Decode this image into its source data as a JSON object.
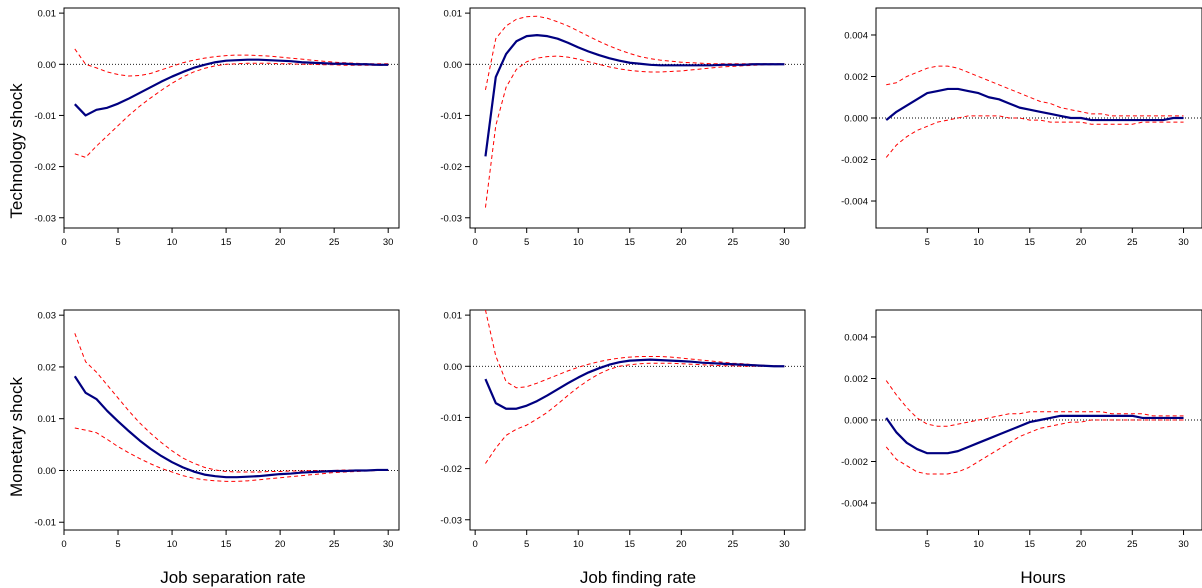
{
  "row_labels": [
    "Technology shock",
    "Monetary shock"
  ],
  "col_labels": [
    "Job separation rate",
    "Job finding rate",
    "Hours"
  ],
  "colors": {
    "point": "#000080",
    "band": "#ff0000",
    "zero_line": "#000000",
    "frame": "#000000"
  },
  "chart_data": [
    {
      "type": "line",
      "row": "Technology shock",
      "column": "Job separation rate",
      "xlim": [
        0,
        31
      ],
      "ylim": [
        -0.032,
        0.011
      ],
      "xticks": [
        0,
        5,
        10,
        15,
        20,
        25,
        30
      ],
      "yticks": [
        0.01,
        0.0,
        -0.01,
        -0.02,
        -0.03
      ],
      "ytick_labels": [
        "0.01",
        "0.00",
        "-0.01",
        "-0.02",
        "-0.03"
      ],
      "x": [
        1,
        2,
        3,
        4,
        5,
        6,
        7,
        8,
        9,
        10,
        11,
        12,
        13,
        14,
        15,
        16,
        17,
        18,
        19,
        20,
        21,
        22,
        23,
        24,
        25,
        26,
        27,
        28,
        29,
        30
      ],
      "series": [
        {
          "role": "point",
          "values": [
            -0.0078,
            -0.01,
            -0.0089,
            -0.0085,
            -0.0077,
            -0.0067,
            -0.0056,
            -0.0045,
            -0.0034,
            -0.0024,
            -0.0015,
            -0.0007,
            -0.0001,
            0.0004,
            0.0007,
            0.0008,
            0.0009,
            0.0009,
            0.0008,
            0.0007,
            0.0006,
            0.0004,
            0.0003,
            0.0002,
            0.0001,
            0.0001,
            0.0,
            0.0,
            -0.0001,
            -0.0001
          ]
        },
        {
          "role": "upper",
          "values": [
            0.003,
            0.0,
            -0.0007,
            -0.0015,
            -0.002,
            -0.0023,
            -0.0022,
            -0.0018,
            -0.0011,
            -0.0004,
            0.0003,
            0.0008,
            0.0012,
            0.0015,
            0.0017,
            0.0018,
            0.0018,
            0.0017,
            0.0016,
            0.0014,
            0.0012,
            0.001,
            0.0008,
            0.0006,
            0.0004,
            0.0003,
            0.0002,
            0.0001,
            0.0001,
            0.0001
          ]
        },
        {
          "role": "lower",
          "values": [
            -0.0175,
            -0.0182,
            -0.016,
            -0.014,
            -0.012,
            -0.01,
            -0.0082,
            -0.0066,
            -0.0051,
            -0.0037,
            -0.0025,
            -0.0015,
            -0.0008,
            -0.0003,
            0.0,
            0.0001,
            0.0002,
            0.0002,
            0.0002,
            0.0001,
            0.0001,
            0.0,
            0.0,
            -0.0001,
            -0.0001,
            -0.0002,
            -0.0002,
            -0.0002,
            -0.0002,
            -0.0002
          ]
        }
      ]
    },
    {
      "type": "line",
      "row": "Technology shock",
      "column": "Job finding rate",
      "xlim": [
        -0.5,
        32
      ],
      "ylim": [
        -0.032,
        0.011
      ],
      "xticks": [
        0,
        5,
        10,
        15,
        20,
        25,
        30
      ],
      "yticks": [
        0.01,
        0.0,
        -0.01,
        -0.02,
        -0.03
      ],
      "ytick_labels": [
        "0.01",
        "0.00",
        "-0.01",
        "-0.02",
        "-0.03"
      ],
      "x": [
        1,
        2,
        3,
        4,
        5,
        6,
        7,
        8,
        9,
        10,
        11,
        12,
        13,
        14,
        15,
        16,
        17,
        18,
        19,
        20,
        21,
        22,
        23,
        24,
        25,
        26,
        27,
        28,
        29,
        30
      ],
      "series": [
        {
          "role": "point",
          "values": [
            -0.018,
            -0.0025,
            0.002,
            0.0045,
            0.0055,
            0.0057,
            0.0055,
            0.005,
            0.0042,
            0.0033,
            0.0025,
            0.0018,
            0.0012,
            0.0007,
            0.0003,
            0.0001,
            -0.0001,
            -0.0002,
            -0.0002,
            -0.0002,
            -0.0002,
            -0.0002,
            -0.0002,
            -0.0001,
            -0.0001,
            -0.0001,
            0.0,
            0.0,
            0.0,
            0.0
          ]
        },
        {
          "role": "upper",
          "values": [
            -0.005,
            0.005,
            0.0075,
            0.0088,
            0.0093,
            0.0094,
            0.009,
            0.0083,
            0.0075,
            0.0065,
            0.0055,
            0.0045,
            0.0036,
            0.0028,
            0.0021,
            0.0015,
            0.0011,
            0.0008,
            0.0006,
            0.0004,
            0.0003,
            0.0002,
            0.0001,
            0.0001,
            0.0001,
            0.0001,
            0.0001,
            0.0001,
            0.0001,
            0.0001
          ]
        },
        {
          "role": "lower",
          "values": [
            -0.028,
            -0.012,
            -0.0045,
            -0.001,
            0.0005,
            0.0012,
            0.0015,
            0.0016,
            0.0014,
            0.001,
            0.0005,
            0.0,
            -0.0005,
            -0.0009,
            -0.0012,
            -0.0014,
            -0.0015,
            -0.0015,
            -0.0014,
            -0.0013,
            -0.0011,
            -0.0009,
            -0.0007,
            -0.0005,
            -0.0004,
            -0.0003,
            -0.0002,
            -0.0001,
            -0.0001,
            0.0
          ]
        }
      ]
    },
    {
      "type": "line",
      "row": "Technology shock",
      "column": "Hours",
      "xlim": [
        0,
        31.8
      ],
      "ylim": [
        -0.0053,
        0.0053
      ],
      "xticks": [
        5,
        10,
        15,
        20,
        25,
        30
      ],
      "yticks": [
        0.004,
        0.002,
        0.0,
        -0.002,
        -0.004
      ],
      "ytick_labels": [
        "0.004",
        "0.002",
        "0.000",
        "-0.002",
        "-0.004"
      ],
      "x": [
        1,
        2,
        3,
        4,
        5,
        6,
        7,
        8,
        9,
        10,
        11,
        12,
        13,
        14,
        15,
        16,
        17,
        18,
        19,
        20,
        21,
        22,
        23,
        24,
        25,
        26,
        27,
        28,
        29,
        30
      ],
      "series": [
        {
          "role": "point",
          "values": [
            -0.0001,
            0.0003,
            0.0006,
            0.0009,
            0.0012,
            0.0013,
            0.0014,
            0.0014,
            0.0013,
            0.0012,
            0.001,
            0.0009,
            0.0007,
            0.0005,
            0.0004,
            0.0003,
            0.0002,
            0.0001,
            0.0,
            0.0,
            -0.0001,
            -0.0001,
            -0.0001,
            -0.0001,
            -0.0001,
            -0.0001,
            -0.0001,
            -0.0001,
            0.0,
            0.0
          ]
        },
        {
          "role": "upper",
          "values": [
            0.0016,
            0.0017,
            0.002,
            0.0022,
            0.0024,
            0.0025,
            0.0025,
            0.0024,
            0.0022,
            0.002,
            0.0018,
            0.0016,
            0.0014,
            0.0012,
            0.001,
            0.0008,
            0.0007,
            0.0005,
            0.0004,
            0.0003,
            0.0002,
            0.0002,
            0.0001,
            0.0001,
            0.0001,
            0.0001,
            0.0001,
            0.0001,
            0.0001,
            0.0001
          ]
        },
        {
          "role": "lower",
          "values": [
            -0.0019,
            -0.0013,
            -0.0009,
            -0.0006,
            -0.0004,
            -0.0002,
            -0.0001,
            -0.0,
            0.0001,
            0.0001,
            0.0001,
            0.0001,
            0.0,
            0.0,
            -0.0001,
            -0.0001,
            -0.0002,
            -0.0002,
            -0.0002,
            -0.0002,
            -0.0003,
            -0.0003,
            -0.0003,
            -0.0003,
            -0.0003,
            -0.0002,
            -0.0002,
            -0.0002,
            -0.0002,
            -0.0002
          ]
        }
      ]
    },
    {
      "type": "line",
      "row": "Monetary shock",
      "column": "Job separation rate",
      "xlim": [
        0,
        31
      ],
      "ylim": [
        -0.0115,
        0.031
      ],
      "xticks": [
        0,
        5,
        10,
        15,
        20,
        25,
        30
      ],
      "yticks": [
        0.03,
        0.02,
        0.01,
        0.0,
        -0.01
      ],
      "ytick_labels": [
        "0.03",
        "0.02",
        "0.01",
        "0.00",
        "-0.01"
      ],
      "x": [
        1,
        2,
        3,
        4,
        5,
        6,
        7,
        8,
        9,
        10,
        11,
        12,
        13,
        14,
        15,
        16,
        17,
        18,
        19,
        20,
        21,
        22,
        23,
        24,
        25,
        26,
        27,
        28,
        29,
        30
      ],
      "series": [
        {
          "role": "point",
          "values": [
            0.0182,
            0.015,
            0.0138,
            0.0115,
            0.0095,
            0.0076,
            0.0058,
            0.0042,
            0.0028,
            0.0016,
            0.0006,
            -0.0002,
            -0.0008,
            -0.0011,
            -0.0013,
            -0.0013,
            -0.0012,
            -0.0011,
            -0.0009,
            -0.0007,
            -0.0006,
            -0.0004,
            -0.0003,
            -0.0002,
            -0.0001,
            -0.0001,
            0.0,
            0.0,
            0.0001,
            0.0001
          ]
        },
        {
          "role": "upper",
          "values": [
            0.0265,
            0.021,
            0.019,
            0.0165,
            0.014,
            0.0115,
            0.0092,
            0.0072,
            0.0054,
            0.0038,
            0.0024,
            0.0014,
            0.0006,
            0.0001,
            -0.0002,
            -0.0003,
            -0.0003,
            -0.0003,
            -0.0002,
            -0.0002,
            -0.0001,
            -0.0001,
            0.0,
            0.0,
            0.0,
            0.0001,
            0.0001,
            0.0001,
            0.0001,
            0.0001
          ]
        },
        {
          "role": "lower",
          "values": [
            0.0082,
            0.0078,
            0.0073,
            0.006,
            0.0046,
            0.0034,
            0.0023,
            0.0013,
            0.0004,
            -0.0003,
            -0.001,
            -0.0015,
            -0.0018,
            -0.002,
            -0.0021,
            -0.0021,
            -0.002,
            -0.0018,
            -0.0016,
            -0.0014,
            -0.0012,
            -0.001,
            -0.0008,
            -0.0006,
            -0.0004,
            -0.0003,
            -0.0002,
            -0.0001,
            0.0,
            0.0
          ]
        }
      ]
    },
    {
      "type": "line",
      "row": "Monetary shock",
      "column": "Job finding rate",
      "xlim": [
        -0.5,
        32
      ],
      "ylim": [
        -0.032,
        0.011
      ],
      "xticks": [
        0,
        5,
        10,
        15,
        20,
        25,
        30
      ],
      "yticks": [
        0.01,
        0.0,
        -0.01,
        -0.02,
        -0.03
      ],
      "ytick_labels": [
        "0.01",
        "0.00",
        "-0.01",
        "-0.02",
        "-0.03"
      ],
      "x": [
        1,
        2,
        3,
        4,
        5,
        6,
        7,
        8,
        9,
        10,
        11,
        12,
        13,
        14,
        15,
        16,
        17,
        18,
        19,
        20,
        21,
        22,
        23,
        24,
        25,
        26,
        27,
        28,
        29,
        30
      ],
      "series": [
        {
          "role": "point",
          "values": [
            -0.0025,
            -0.0072,
            -0.0083,
            -0.0083,
            -0.0077,
            -0.0068,
            -0.0057,
            -0.0045,
            -0.0033,
            -0.0022,
            -0.0012,
            -0.0004,
            0.0003,
            0.0008,
            0.0011,
            0.0012,
            0.0013,
            0.0012,
            0.0011,
            0.001,
            0.0009,
            0.0007,
            0.0006,
            0.0005,
            0.0004,
            0.0003,
            0.0002,
            0.0001,
            0.0,
            0.0
          ]
        },
        {
          "role": "upper",
          "values": [
            0.011,
            0.002,
            -0.003,
            -0.0042,
            -0.004,
            -0.0033,
            -0.0025,
            -0.0017,
            -0.0009,
            -0.0002,
            0.0004,
            0.0009,
            0.0013,
            0.0016,
            0.0018,
            0.0019,
            0.0019,
            0.0019,
            0.0018,
            0.0016,
            0.0014,
            0.0012,
            0.001,
            0.0008,
            0.0006,
            0.0005,
            0.0003,
            0.0002,
            0.0001,
            0.0
          ]
        },
        {
          "role": "lower",
          "values": [
            -0.019,
            -0.016,
            -0.0135,
            -0.0123,
            -0.0115,
            -0.0103,
            -0.009,
            -0.0074,
            -0.0057,
            -0.0041,
            -0.0027,
            -0.0015,
            -0.0006,
            0.0,
            0.0003,
            0.0005,
            0.0006,
            0.0006,
            0.0006,
            0.0005,
            0.0004,
            0.0003,
            0.0002,
            0.0001,
            0.0001,
            0.0,
            0.0,
            0.0,
            0.0,
            0.0
          ]
        }
      ]
    },
    {
      "type": "line",
      "row": "Monetary shock",
      "column": "Hours",
      "xlim": [
        0,
        31.8
      ],
      "ylim": [
        -0.0053,
        0.0053
      ],
      "xticks": [
        5,
        10,
        15,
        20,
        25,
        30
      ],
      "yticks": [
        0.004,
        0.002,
        0.0,
        -0.002,
        -0.004
      ],
      "ytick_labels": [
        "0.004",
        "0.002",
        "0.000",
        "-0.002",
        "-0.004"
      ],
      "x": [
        1,
        2,
        3,
        4,
        5,
        6,
        7,
        8,
        9,
        10,
        11,
        12,
        13,
        14,
        15,
        16,
        17,
        18,
        19,
        20,
        21,
        22,
        23,
        24,
        25,
        26,
        27,
        28,
        29,
        30
      ],
      "series": [
        {
          "role": "point",
          "values": [
            0.0001,
            -0.0006,
            -0.0011,
            -0.0014,
            -0.0016,
            -0.0016,
            -0.0016,
            -0.0015,
            -0.0013,
            -0.0011,
            -0.0009,
            -0.0007,
            -0.0005,
            -0.0003,
            -0.0001,
            0.0,
            0.0001,
            0.0002,
            0.0002,
            0.0002,
            0.0002,
            0.0002,
            0.0002,
            0.0002,
            0.0002,
            0.0001,
            0.0001,
            0.0001,
            0.0001,
            0.0001
          ]
        },
        {
          "role": "upper",
          "values": [
            0.0019,
            0.0012,
            0.0006,
            0.0001,
            -0.0002,
            -0.0003,
            -0.0003,
            -0.0002,
            -0.0001,
            0.0,
            0.0001,
            0.0002,
            0.0003,
            0.0003,
            0.0004,
            0.0004,
            0.0004,
            0.0004,
            0.0004,
            0.0004,
            0.0004,
            0.0004,
            0.0003,
            0.0003,
            0.0003,
            0.0003,
            0.0002,
            0.0002,
            0.0002,
            0.0002
          ]
        },
        {
          "role": "lower",
          "values": [
            -0.0013,
            -0.0019,
            -0.0022,
            -0.0025,
            -0.0026,
            -0.0026,
            -0.0026,
            -0.0025,
            -0.0023,
            -0.002,
            -0.0017,
            -0.0014,
            -0.0011,
            -0.0008,
            -0.0006,
            -0.0004,
            -0.0003,
            -0.0002,
            -0.0001,
            -0.0001,
            0.0,
            0.0,
            0.0,
            0.0,
            0.0,
            0.0,
            0.0,
            0.0,
            0.0,
            0.0
          ]
        }
      ]
    }
  ]
}
